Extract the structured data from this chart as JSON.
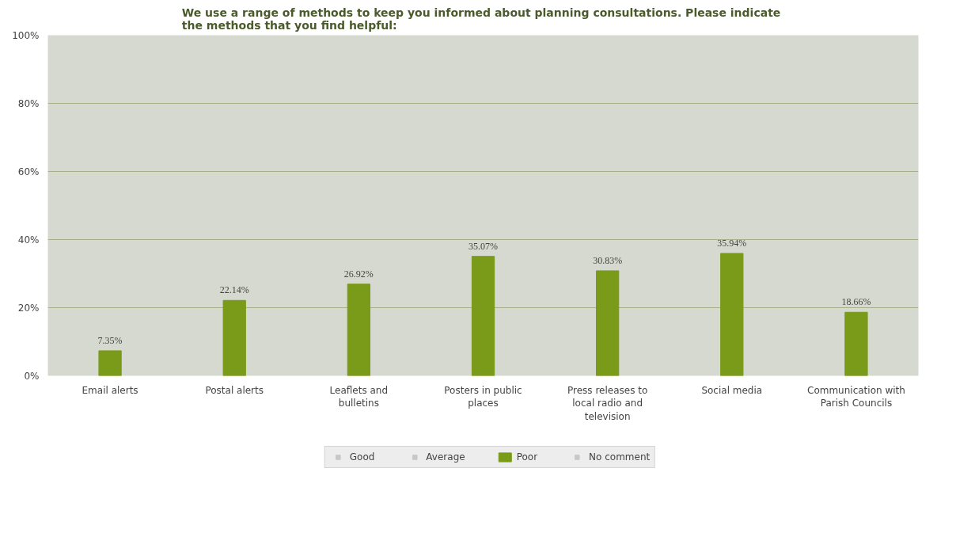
{
  "chart_data": {
    "type": "bar",
    "title": "We use a range of methods to keep you informed about planning consultations.  Please indicate the methods that you find helpful:",
    "categories": [
      "Email alerts",
      "Postal alerts",
      "Leaflets and bulletins",
      "Posters in public places",
      "Press releases to local radio and television",
      "Social media",
      "Communication with Parish Councils"
    ],
    "series": [
      {
        "name": "Good",
        "color": "#c8c8c8",
        "values": [
          null,
          null,
          null,
          null,
          null,
          null,
          null
        ]
      },
      {
        "name": "Average",
        "color": "#c8c8c8",
        "values": [
          null,
          null,
          null,
          null,
          null,
          null,
          null
        ]
      },
      {
        "name": "Poor",
        "color": "#7a9a1a",
        "values": [
          7.35,
          22.14,
          26.92,
          35.07,
          30.83,
          35.94,
          18.66
        ],
        "value_labels": [
          "7.35%",
          "22.14%",
          "26.92%",
          "35.07%",
          "30.83%",
          "35.94%",
          "18.66%"
        ]
      },
      {
        "name": "No comment",
        "color": "#c8c8c8",
        "values": [
          null,
          null,
          null,
          null,
          null,
          null,
          null
        ]
      }
    ],
    "ylim": [
      0,
      100
    ],
    "yticks": [
      {
        "value": 0,
        "label": "0%"
      },
      {
        "value": 20,
        "label": "20%"
      },
      {
        "value": 40,
        "label": "40%"
      },
      {
        "value": 60,
        "label": "60%"
      },
      {
        "value": 80,
        "label": "80%"
      },
      {
        "value": 100,
        "label": "100%"
      }
    ],
    "grid": "y",
    "legend": "bottom",
    "data_labels": true
  }
}
